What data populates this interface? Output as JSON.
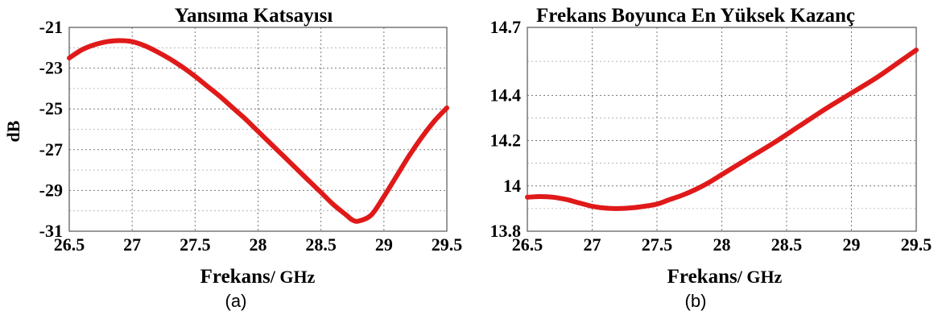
{
  "chart_data": [
    {
      "type": "line",
      "title": "Yansıma Katsayısı",
      "xlabel_main": "Frekans",
      "xlabel_unit": "/ GHz",
      "ylabel": "dB",
      "caption": "(a)",
      "xlim": [
        26.5,
        29.5
      ],
      "ylim": [
        -31,
        -21
      ],
      "xticks": [
        "26.5",
        "27",
        "27.5",
        "28",
        "28.5",
        "29",
        "29.5"
      ],
      "yticks": [
        "-21",
        "-23",
        "-25",
        "-27",
        "-29",
        "-31"
      ],
      "ytick_values": [
        -21,
        -23,
        -25,
        -27,
        -29,
        -31
      ],
      "grid": true,
      "color": "#e01919",
      "series": [
        {
          "x": [
            26.5,
            26.6,
            26.7,
            26.8,
            26.9,
            27.0,
            27.1,
            27.2,
            27.3,
            27.4,
            27.5,
            27.6,
            27.7,
            27.8,
            27.9,
            28.0,
            28.1,
            28.2,
            28.3,
            28.4,
            28.5,
            28.6,
            28.7,
            28.75,
            28.8,
            28.9,
            29.0,
            29.1,
            29.2,
            29.3,
            29.4,
            29.5
          ],
          "values": [
            -22.5,
            -22.1,
            -21.85,
            -21.7,
            -21.65,
            -21.7,
            -21.9,
            -22.2,
            -22.55,
            -22.95,
            -23.4,
            -23.9,
            -24.4,
            -24.95,
            -25.5,
            -26.1,
            -26.7,
            -27.3,
            -27.9,
            -28.5,
            -29.1,
            -29.7,
            -30.2,
            -30.45,
            -30.5,
            -30.2,
            -29.3,
            -28.3,
            -27.3,
            -26.4,
            -25.6,
            -24.95
          ]
        }
      ]
    },
    {
      "type": "line",
      "title": "Frekans Boyunca En Yüksek Kazanç",
      "xlabel_main": "Frekans",
      "xlabel_unit": "/ GHz",
      "ylabel": "",
      "caption": "(b)",
      "xlim": [
        26.5,
        29.5
      ],
      "ylim": [
        13.8,
        14.7
      ],
      "xticks": [
        "26.5",
        "27",
        "27.5",
        "28",
        "28.5",
        "29",
        "29.5"
      ],
      "yticks": [
        "14.7",
        "14.4",
        "14.2",
        "14",
        "13.8"
      ],
      "ytick_values": [
        14.7,
        14.4,
        14.2,
        14.0,
        13.8
      ],
      "grid": true,
      "color": "#e01919",
      "series": [
        {
          "x": [
            26.5,
            26.6,
            26.7,
            26.8,
            26.9,
            27.0,
            27.1,
            27.2,
            27.3,
            27.4,
            27.5,
            27.6,
            27.7,
            27.8,
            27.9,
            28.0,
            28.2,
            28.4,
            28.6,
            28.8,
            29.0,
            29.2,
            29.4,
            29.5
          ],
          "values": [
            13.95,
            13.953,
            13.95,
            13.94,
            13.925,
            13.91,
            13.902,
            13.9,
            13.903,
            13.91,
            13.92,
            13.94,
            13.96,
            13.985,
            14.015,
            14.05,
            14.12,
            14.19,
            14.265,
            14.34,
            14.41,
            14.48,
            14.56,
            14.6
          ]
        }
      ]
    }
  ]
}
